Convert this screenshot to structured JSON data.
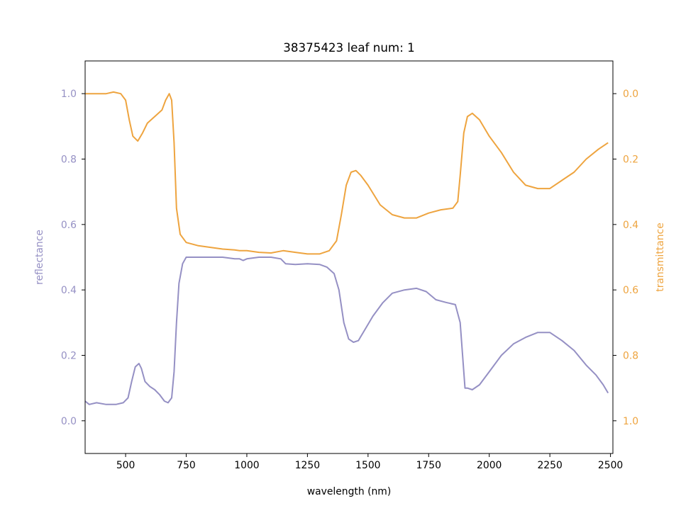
{
  "chart_data": {
    "type": "line",
    "title": "38375423 leaf num: 1",
    "xlabel": "wavelength (nm)",
    "ylabel_left": "reflectance",
    "ylabel_right": "transmittance",
    "xlim": [
      333,
      2510
    ],
    "ylim_left": [
      -0.1,
      1.1
    ],
    "ylim_right": [
      1.1,
      -0.1
    ],
    "right_axis_inverted": true,
    "grid": false,
    "x_ticks": [
      500,
      750,
      1000,
      1250,
      1500,
      1750,
      2000,
      2250,
      2500
    ],
    "x_tick_labels": [
      "500",
      "750",
      "1000",
      "1250",
      "1500",
      "1750",
      "2000",
      "2250",
      "2500"
    ],
    "y_left_ticks": [
      0.0,
      0.2,
      0.4,
      0.6,
      0.8,
      1.0
    ],
    "y_left_tick_labels": [
      "0.0",
      "0.2",
      "0.4",
      "0.6",
      "0.8",
      "1.0"
    ],
    "y_right_ticks": [
      0.0,
      0.2,
      0.4,
      0.6,
      0.8,
      1.0
    ],
    "y_right_tick_labels": [
      "0.0",
      "0.2",
      "0.4",
      "0.6",
      "0.8",
      "1.0"
    ],
    "series": [
      {
        "axis": "left",
        "color": "#9590c4",
        "points": [
          [
            333,
            0.06
          ],
          [
            350,
            0.05
          ],
          [
            380,
            0.055
          ],
          [
            420,
            0.05
          ],
          [
            460,
            0.05
          ],
          [
            490,
            0.055
          ],
          [
            510,
            0.07
          ],
          [
            525,
            0.12
          ],
          [
            540,
            0.165
          ],
          [
            555,
            0.175
          ],
          [
            565,
            0.16
          ],
          [
            580,
            0.12
          ],
          [
            600,
            0.105
          ],
          [
            620,
            0.095
          ],
          [
            640,
            0.08
          ],
          [
            660,
            0.06
          ],
          [
            675,
            0.055
          ],
          [
            690,
            0.07
          ],
          [
            700,
            0.15
          ],
          [
            710,
            0.3
          ],
          [
            720,
            0.42
          ],
          [
            735,
            0.48
          ],
          [
            750,
            0.5
          ],
          [
            800,
            0.5
          ],
          [
            850,
            0.5
          ],
          [
            900,
            0.5
          ],
          [
            950,
            0.495
          ],
          [
            970,
            0.495
          ],
          [
            985,
            0.49
          ],
          [
            1000,
            0.495
          ],
          [
            1050,
            0.5
          ],
          [
            1100,
            0.5
          ],
          [
            1140,
            0.495
          ],
          [
            1160,
            0.48
          ],
          [
            1200,
            0.478
          ],
          [
            1250,
            0.48
          ],
          [
            1300,
            0.478
          ],
          [
            1330,
            0.47
          ],
          [
            1360,
            0.45
          ],
          [
            1380,
            0.4
          ],
          [
            1400,
            0.3
          ],
          [
            1420,
            0.25
          ],
          [
            1440,
            0.24
          ],
          [
            1460,
            0.245
          ],
          [
            1480,
            0.27
          ],
          [
            1520,
            0.32
          ],
          [
            1560,
            0.36
          ],
          [
            1600,
            0.39
          ],
          [
            1650,
            0.4
          ],
          [
            1700,
            0.405
          ],
          [
            1740,
            0.395
          ],
          [
            1780,
            0.37
          ],
          [
            1820,
            0.362
          ],
          [
            1860,
            0.355
          ],
          [
            1880,
            0.3
          ],
          [
            1890,
            0.2
          ],
          [
            1900,
            0.1
          ],
          [
            1910,
            0.1
          ],
          [
            1930,
            0.095
          ],
          [
            1960,
            0.11
          ],
          [
            2000,
            0.15
          ],
          [
            2050,
            0.2
          ],
          [
            2100,
            0.235
          ],
          [
            2150,
            0.255
          ],
          [
            2200,
            0.27
          ],
          [
            2250,
            0.27
          ],
          [
            2300,
            0.245
          ],
          [
            2350,
            0.215
          ],
          [
            2400,
            0.17
          ],
          [
            2440,
            0.14
          ],
          [
            2470,
            0.11
          ],
          [
            2490,
            0.085
          ]
        ]
      },
      {
        "axis": "right",
        "color": "#eea43f",
        "points": [
          [
            333,
            0.0
          ],
          [
            380,
            0.0
          ],
          [
            420,
            0.0
          ],
          [
            450,
            -0.005
          ],
          [
            480,
            0.0
          ],
          [
            500,
            0.02
          ],
          [
            515,
            0.08
          ],
          [
            530,
            0.13
          ],
          [
            550,
            0.145
          ],
          [
            570,
            0.12
          ],
          [
            590,
            0.09
          ],
          [
            620,
            0.07
          ],
          [
            650,
            0.05
          ],
          [
            665,
            0.02
          ],
          [
            680,
            0.0
          ],
          [
            690,
            0.02
          ],
          [
            700,
            0.15
          ],
          [
            710,
            0.35
          ],
          [
            725,
            0.43
          ],
          [
            750,
            0.455
          ],
          [
            800,
            0.465
          ],
          [
            850,
            0.47
          ],
          [
            900,
            0.475
          ],
          [
            950,
            0.478
          ],
          [
            970,
            0.48
          ],
          [
            1000,
            0.48
          ],
          [
            1050,
            0.485
          ],
          [
            1100,
            0.487
          ],
          [
            1150,
            0.48
          ],
          [
            1200,
            0.485
          ],
          [
            1250,
            0.49
          ],
          [
            1300,
            0.49
          ],
          [
            1340,
            0.48
          ],
          [
            1370,
            0.45
          ],
          [
            1390,
            0.37
          ],
          [
            1410,
            0.28
          ],
          [
            1430,
            0.24
          ],
          [
            1450,
            0.235
          ],
          [
            1470,
            0.25
          ],
          [
            1500,
            0.28
          ],
          [
            1550,
            0.34
          ],
          [
            1600,
            0.37
          ],
          [
            1650,
            0.38
          ],
          [
            1700,
            0.38
          ],
          [
            1750,
            0.365
          ],
          [
            1800,
            0.355
          ],
          [
            1850,
            0.35
          ],
          [
            1870,
            0.33
          ],
          [
            1880,
            0.25
          ],
          [
            1895,
            0.12
          ],
          [
            1910,
            0.07
          ],
          [
            1930,
            0.06
          ],
          [
            1960,
            0.08
          ],
          [
            2000,
            0.13
          ],
          [
            2050,
            0.18
          ],
          [
            2100,
            0.24
          ],
          [
            2150,
            0.28
          ],
          [
            2200,
            0.29
          ],
          [
            2250,
            0.29
          ],
          [
            2300,
            0.265
          ],
          [
            2350,
            0.24
          ],
          [
            2400,
            0.2
          ],
          [
            2450,
            0.17
          ],
          [
            2490,
            0.15
          ]
        ]
      }
    ]
  }
}
